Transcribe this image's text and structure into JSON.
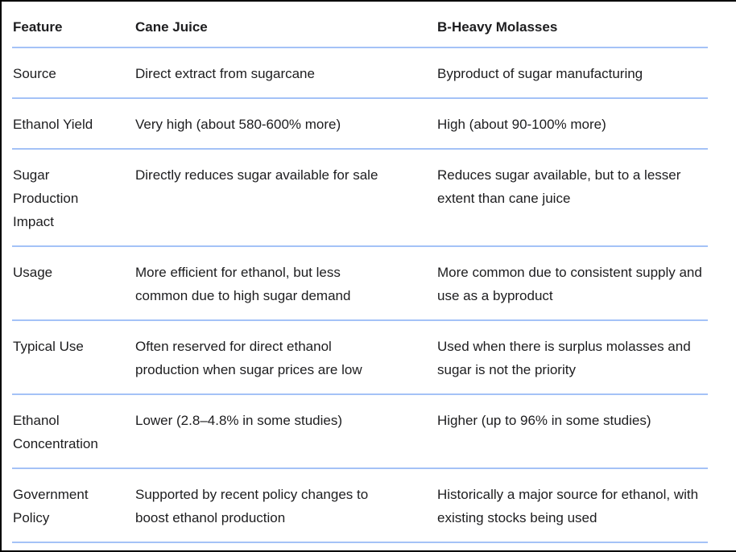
{
  "table": {
    "columns": [
      "Feature",
      "Cane Juice",
      "B-Heavy Molasses"
    ],
    "rows": [
      {
        "feature": "Source",
        "cane_juice": "Direct extract from sugarcane",
        "b_heavy_molasses": "Byproduct of sugar manufacturing"
      },
      {
        "feature": "Ethanol Yield",
        "cane_juice": "Very high (about 580-600% more)",
        "b_heavy_molasses": "High (about 90-100% more)"
      },
      {
        "feature": "Sugar Production Impact",
        "cane_juice": "Directly reduces sugar available for sale",
        "b_heavy_molasses": "Reduces sugar available, but to a lesser extent than cane juice"
      },
      {
        "feature": "Usage",
        "cane_juice": "More efficient for ethanol, but less common due to high sugar demand",
        "b_heavy_molasses": "More common due to consistent supply and use as a byproduct"
      },
      {
        "feature": "Typical Use",
        "cane_juice": "Often reserved for direct ethanol production when sugar prices are low",
        "b_heavy_molasses": "Used when there is surplus molasses and sugar is not the priority"
      },
      {
        "feature": "Ethanol Concentration",
        "cane_juice": "Lower (2.8–4.8% in some studies)",
        "b_heavy_molasses": "Higher (up to 96% in some studies)"
      },
      {
        "feature": "Government Policy",
        "cane_juice": "Supported by recent policy changes to boost ethanol production",
        "b_heavy_molasses": "Historically a major source for ethanol, with existing stocks being used"
      }
    ],
    "colors": {
      "divider": "#a4c2f7",
      "text": "#1d1d1f",
      "frame_border": "#000000",
      "background": "#ffffff"
    }
  }
}
